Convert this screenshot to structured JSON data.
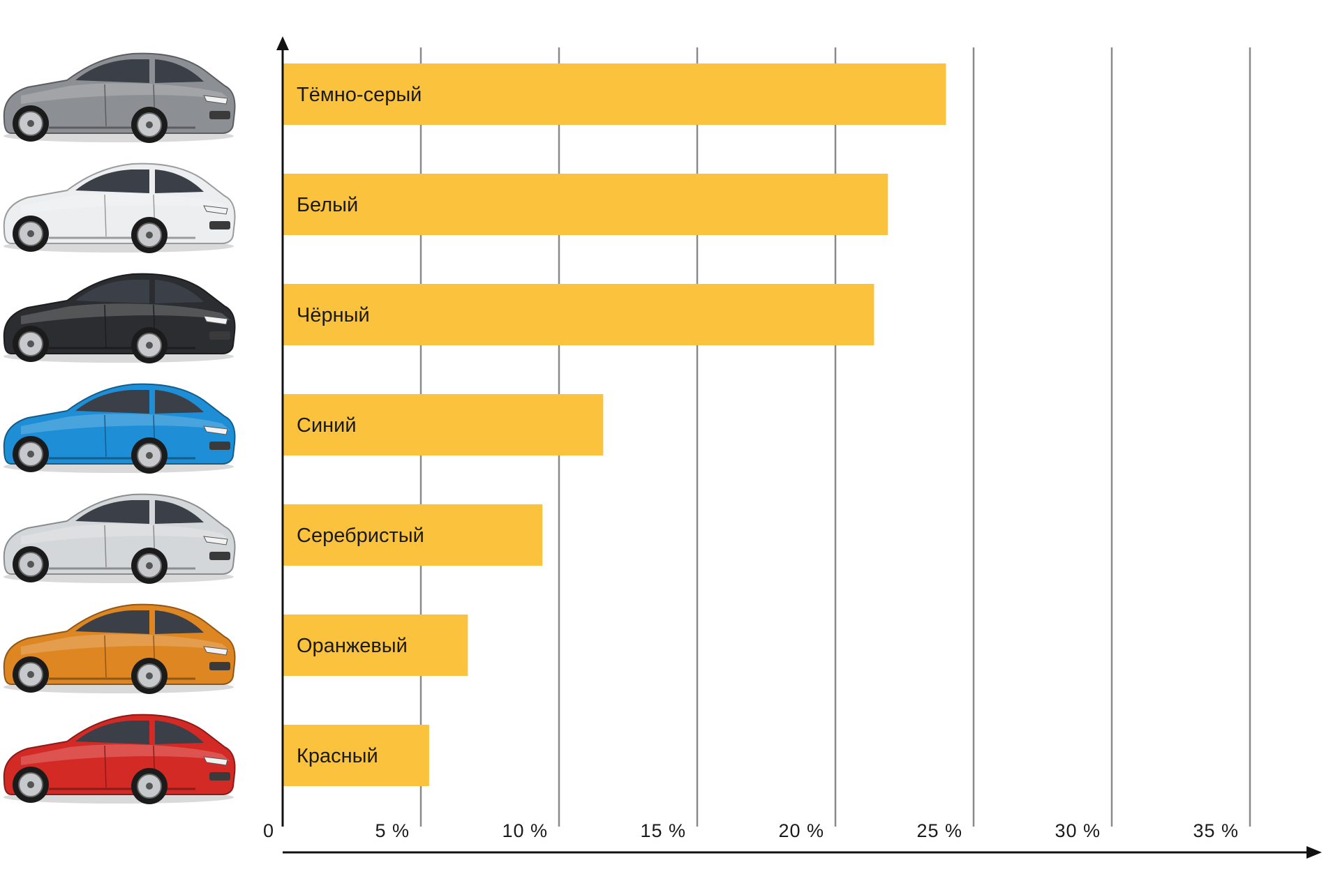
{
  "chart_data": {
    "type": "bar",
    "orientation": "horizontal",
    "categories": [
      "Тёмно-серый",
      "Белый",
      "Чёрный",
      "Синий",
      "Серебристый",
      "Оранжевый",
      "Красный"
    ],
    "values": [
      24.0,
      21.9,
      21.4,
      11.6,
      9.4,
      6.7,
      5.3
    ],
    "xlim": [
      0,
      37.5
    ],
    "x_ticks": [
      0,
      5,
      10,
      15,
      20,
      25,
      30,
      35
    ],
    "x_tick_labels": [
      "0",
      "5 %",
      "10 %",
      "15 %",
      "20 %",
      "25 %",
      "30 %",
      "35 %"
    ],
    "grid": true,
    "title": "",
    "xlabel": "",
    "ylabel": "",
    "bar_color": "#fbc23e",
    "grid_color": "#8a8a8a",
    "axis_color": "#111111",
    "category_icons": [
      {
        "name": "car-dark-gray-icon",
        "color": "#8c8f93"
      },
      {
        "name": "car-white-icon",
        "color": "#eceef0"
      },
      {
        "name": "car-black-icon",
        "color": "#2c2d30"
      },
      {
        "name": "car-blue-icon",
        "color": "#1e8fd6"
      },
      {
        "name": "car-silver-icon",
        "color": "#d4d7da"
      },
      {
        "name": "car-orange-icon",
        "color": "#dd8622"
      },
      {
        "name": "car-red-icon",
        "color": "#d42a26"
      }
    ]
  }
}
